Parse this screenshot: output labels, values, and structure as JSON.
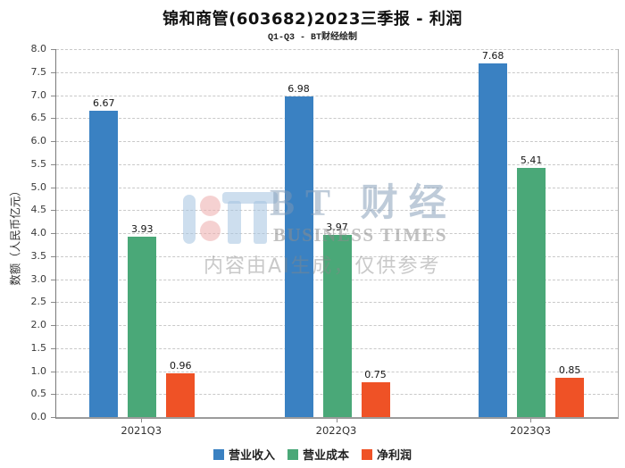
{
  "chart_data": {
    "type": "bar",
    "title": "锦和商管(603682)2023三季报 - 利润",
    "subtitle": "Q1-Q3 - BT财经绘制",
    "categories": [
      "2021Q3",
      "2022Q3",
      "2023Q3"
    ],
    "series": [
      {
        "name": "营业收入",
        "color": "#3a81c2",
        "values": [
          6.67,
          6.98,
          7.68
        ]
      },
      {
        "name": "营业成本",
        "color": "#4aa878",
        "values": [
          3.93,
          3.97,
          5.41
        ]
      },
      {
        "name": "净利润",
        "color": "#ef5226",
        "values": [
          0.96,
          0.75,
          0.85
        ]
      }
    ],
    "xlabel": "",
    "ylabel": "数额（人民币亿元）",
    "ylim": [
      0,
      8
    ],
    "ytick_step": 0.5,
    "grid": "horizontal-dashed",
    "legend_position": "bottom"
  },
  "watermark": {
    "brand_cn": "BT 财经",
    "brand_en": "BUSINESS TIMES",
    "disclaimer": "内容由AI生成，仅供参考"
  },
  "colors": {
    "revenue": "#3a81c2",
    "cost": "#4aa878",
    "net_profit": "#ef5226",
    "gridline": "#c9c9c9",
    "axis": "#8a8a8a"
  }
}
